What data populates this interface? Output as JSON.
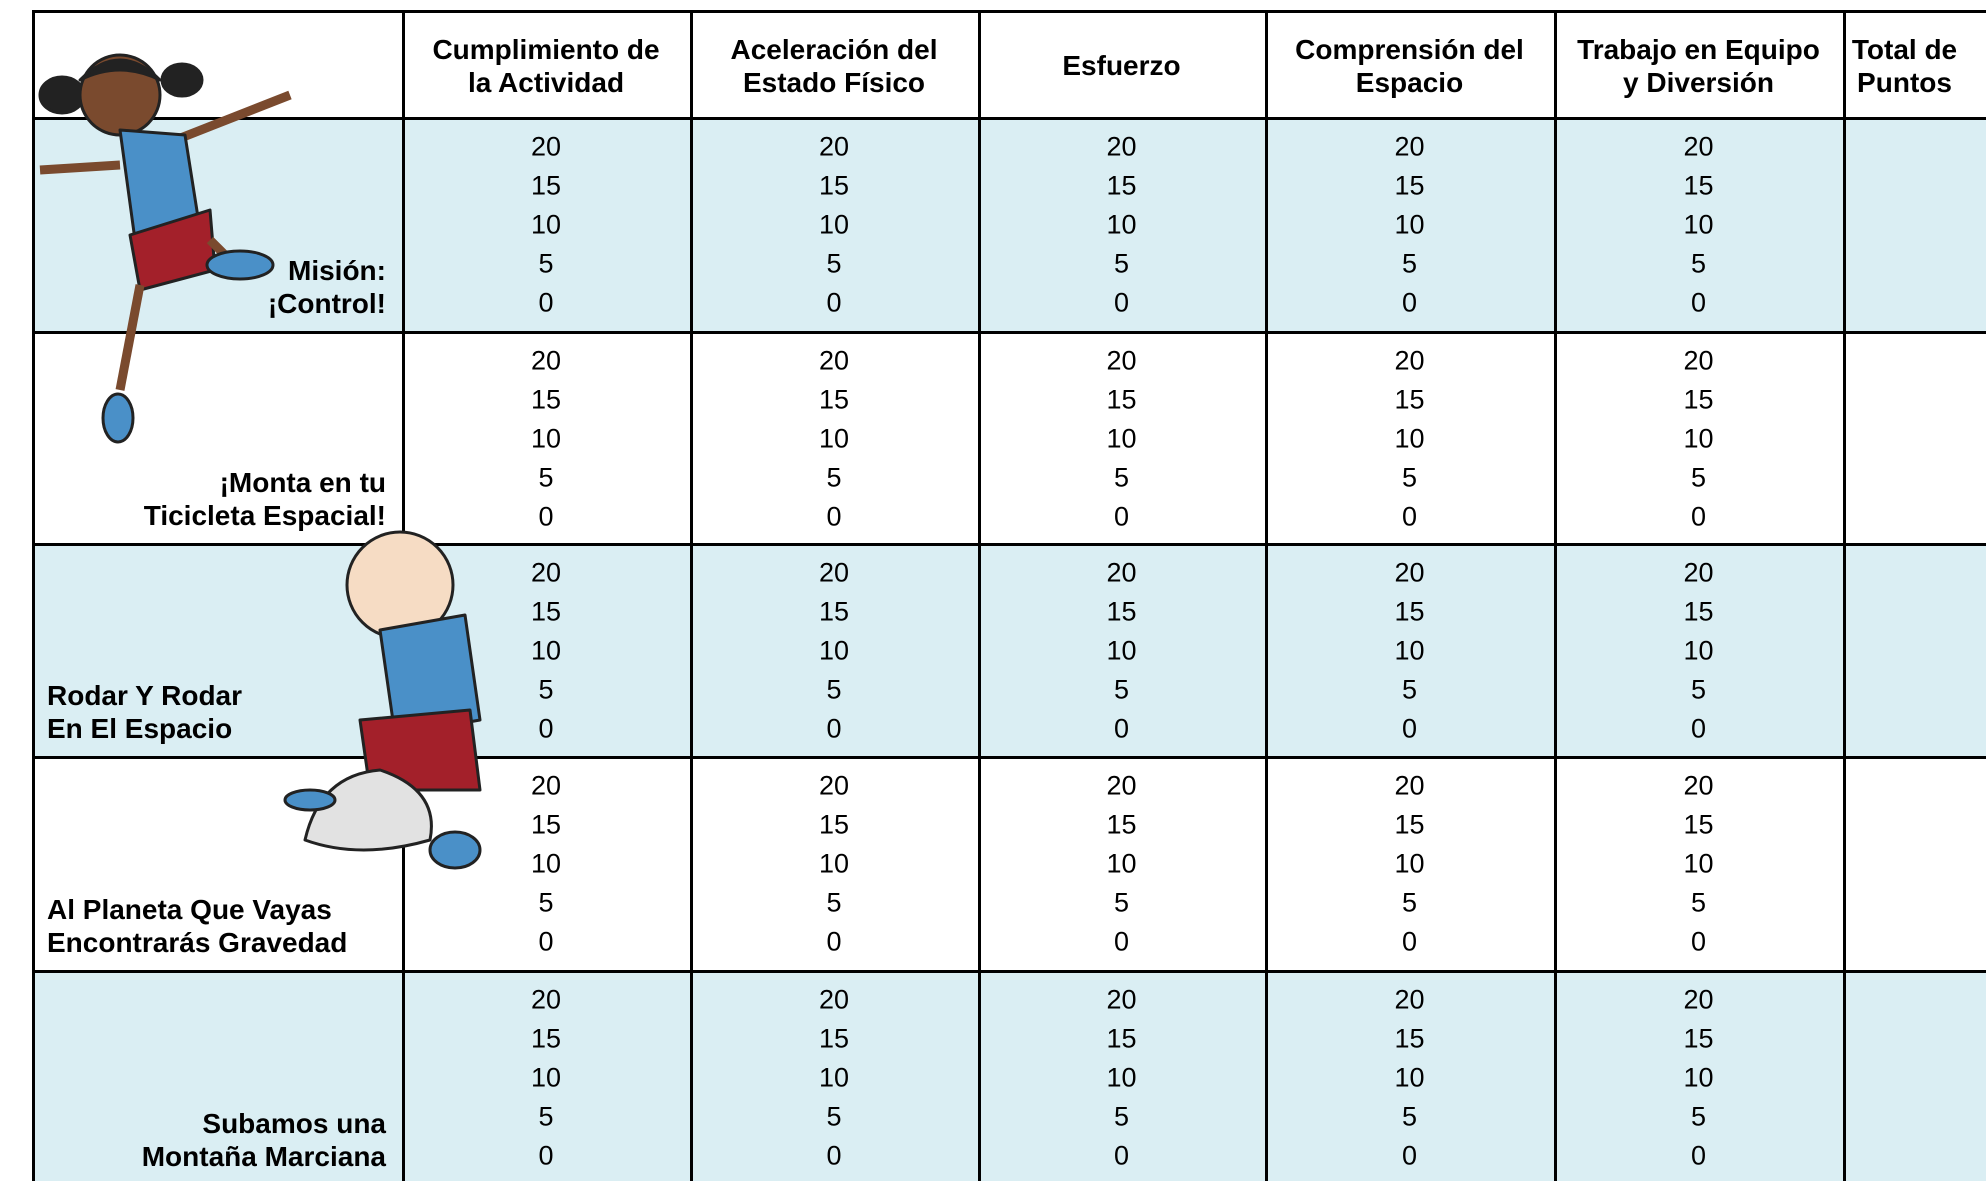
{
  "header": {
    "columns": [
      [
        "Cumplimiento de",
        "la Actividad"
      ],
      [
        "Aceleración del",
        "Estado Físico"
      ],
      [
        "Esfuerzo"
      ],
      [
        "Comprensión del",
        "Espacio"
      ],
      [
        "Trabajo en Equipo",
        "y Diversión"
      ],
      [
        "Total de",
        "Puntos"
      ]
    ]
  },
  "table": {
    "rows": [
      {
        "label": [
          "Misión:",
          "¡Control!"
        ],
        "cells": [
          [
            20,
            15,
            10,
            5,
            0
          ],
          [
            20,
            15,
            10,
            5,
            0
          ],
          [
            20,
            15,
            10,
            5,
            0
          ],
          [
            20,
            15,
            10,
            5,
            0
          ],
          [
            20,
            15,
            10,
            5,
            0
          ]
        ]
      },
      {
        "label": [
          "¡Monta en tu",
          "Ticicleta Espacial!"
        ],
        "cells": [
          [
            20,
            15,
            10,
            5,
            0
          ],
          [
            20,
            15,
            10,
            5,
            0
          ],
          [
            20,
            15,
            10,
            5,
            0
          ],
          [
            20,
            15,
            10,
            5,
            0
          ],
          [
            20,
            15,
            10,
            5,
            0
          ]
        ]
      },
      {
        "label": [
          "Rodar Y Rodar",
          "En El Espacio"
        ],
        "cells": [
          [
            20,
            15,
            10,
            5,
            0
          ],
          [
            20,
            15,
            10,
            5,
            0
          ],
          [
            20,
            15,
            10,
            5,
            0
          ],
          [
            20,
            15,
            10,
            5,
            0
          ],
          [
            20,
            15,
            10,
            5,
            0
          ]
        ]
      },
      {
        "label": [
          "Al Planeta Que Vayas",
          "Encontrarás Gravedad"
        ],
        "cells": [
          [
            20,
            15,
            10,
            5,
            0
          ],
          [
            20,
            15,
            10,
            5,
            0
          ],
          [
            20,
            15,
            10,
            5,
            0
          ],
          [
            20,
            15,
            10,
            5,
            0
          ],
          [
            20,
            15,
            10,
            5,
            0
          ]
        ]
      },
      {
        "label": [
          "Subamos una",
          "Montaña Marciana"
        ],
        "cells": [
          [
            20,
            15,
            10,
            5,
            0
          ],
          [
            20,
            15,
            10,
            5,
            0
          ],
          [
            20,
            15,
            10,
            5,
            0
          ],
          [
            20,
            15,
            10,
            5,
            0
          ],
          [
            20,
            15,
            10,
            5,
            0
          ]
        ]
      }
    ]
  }
}
